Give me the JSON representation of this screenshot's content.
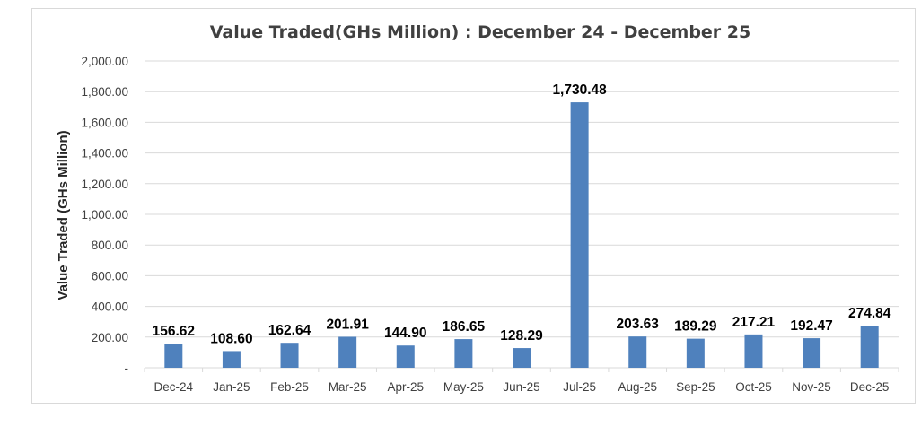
{
  "chart_data": {
    "type": "bar",
    "title": "Value Traded(GHs Million) : December 24 - December 25",
    "xlabel": "",
    "ylabel": "Value Traded (GHs Million)",
    "ylim": [
      0,
      2000
    ],
    "grid": true,
    "legend": "none",
    "bar_color": "#4f81bd",
    "y_ticks": [
      0,
      200,
      400,
      600,
      800,
      1000,
      1200,
      1400,
      1600,
      1800,
      2000
    ],
    "y_tick_labels": [
      "-",
      "200.00",
      "400.00",
      "600.00",
      "800.00",
      "1,000.00",
      "1,200.00",
      "1,400.00",
      "1,600.00",
      "1,800.00",
      "2,000.00"
    ],
    "categories": [
      "Dec-24",
      "Jan-25",
      "Feb-25",
      "Mar-25",
      "Apr-25",
      "May-25",
      "Jun-25",
      "Jul-25",
      "Aug-25",
      "Sep-25",
      "Oct-25",
      "Nov-25",
      "Dec-25"
    ],
    "values": [
      156.62,
      108.6,
      162.64,
      201.91,
      144.9,
      186.65,
      128.29,
      1730.48,
      203.63,
      189.29,
      217.21,
      192.47,
      274.84
    ],
    "data_labels": [
      "156.62",
      "108.60",
      "162.64",
      "201.91",
      "144.90",
      "186.65",
      "128.29",
      "1,730.48",
      "203.63",
      "189.29",
      "217.21",
      "192.47",
      "274.84"
    ]
  }
}
